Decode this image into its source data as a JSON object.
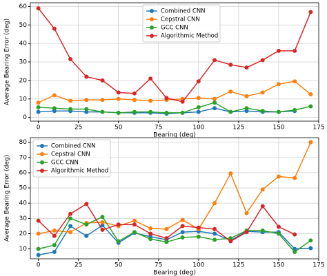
{
  "chart_data": [
    {
      "type": "line",
      "x_label": "Bearing (deg)",
      "y_label": "Average Bearing Error (deg)",
      "x": [
        0,
        10,
        20,
        30,
        40,
        50,
        60,
        70,
        80,
        90,
        100,
        110,
        120,
        130,
        140,
        150,
        160,
        170
      ],
      "xlim": [
        -5,
        175
      ],
      "xticks": [
        0,
        25,
        50,
        75,
        100,
        125,
        150,
        175
      ],
      "ylim": [
        -2,
        62
      ],
      "yticks": [
        0,
        10,
        20,
        30,
        40,
        50,
        60
      ],
      "grid": true,
      "legend": "upper center",
      "series": [
        {
          "name": "Combined CNN",
          "color": "#1f77b4",
          "values": [
            3,
            3.5,
            3.5,
            3,
            3,
            2.5,
            2.5,
            2.5,
            2,
            2.5,
            3,
            5,
            3,
            3.5,
            3,
            3,
            3.5,
            null
          ]
        },
        {
          "name": "Cepstral CNN",
          "color": "#ff7f0e",
          "values": [
            8,
            12,
            9,
            9.5,
            9.5,
            10,
            9.5,
            9,
            9.5,
            10,
            10.5,
            10,
            14,
            11.5,
            13.5,
            18,
            19.5,
            12.5
          ]
        },
        {
          "name": "GCC CNN",
          "color": "#2ca02c",
          "values": [
            5.5,
            5,
            4.5,
            4.5,
            3,
            2.5,
            3,
            3,
            2.5,
            2.5,
            5.5,
            8,
            3,
            5,
            3.5,
            3,
            4,
            6
          ]
        },
        {
          "name": "Algorithmic Method",
          "color": "#d62728",
          "values": [
            59,
            48,
            31.5,
            22,
            20,
            13.5,
            13,
            21,
            10.5,
            8.5,
            19.5,
            31,
            28.5,
            27,
            31,
            36,
            36,
            57
          ]
        }
      ]
    },
    {
      "type": "line",
      "x_label": "Bearing (deg)",
      "y_label": "Average Bearing Error (deg)",
      "x": [
        0,
        10,
        20,
        30,
        40,
        50,
        60,
        70,
        80,
        90,
        100,
        110,
        120,
        130,
        140,
        150,
        160,
        170
      ],
      "xlim": [
        -5,
        175
      ],
      "xticks": [
        0,
        25,
        50,
        75,
        100,
        125,
        150,
        175
      ],
      "ylim": [
        3.5,
        83
      ],
      "yticks": [
        10,
        20,
        30,
        40,
        50,
        60,
        70,
        80
      ],
      "grid": true,
      "legend": "upper left",
      "series": [
        {
          "name": "Combined CNN",
          "color": "#1f77b4",
          "values": [
            6,
            8,
            25,
            18.5,
            25.5,
            14,
            20.5,
            18,
            16,
            21,
            21.5,
            20,
            15.5,
            21.5,
            21,
            21,
            10,
            10.5
          ]
        },
        {
          "name": "Cepstral CNN",
          "color": "#ff7f0e",
          "values": [
            20,
            22,
            21,
            27,
            27.5,
            25,
            28.5,
            23.5,
            23,
            29,
            23,
            40,
            59.5,
            33.5,
            49,
            57.5,
            56.5,
            80
          ]
        },
        {
          "name": "GCC CNN",
          "color": "#2ca02c",
          "values": [
            10,
            12.5,
            30,
            26,
            31,
            15,
            21,
            16.5,
            14.5,
            17.5,
            18,
            16,
            17,
            22,
            22,
            20,
            8,
            15.5
          ]
        },
        {
          "name": "Algorithmic Method",
          "color": "#d62728",
          "values": [
            28.5,
            18.5,
            33,
            39.5,
            22.5,
            26,
            26,
            20,
            17,
            25,
            24,
            23,
            15,
            21,
            38,
            24.5,
            19.5,
            null
          ]
        }
      ]
    }
  ]
}
